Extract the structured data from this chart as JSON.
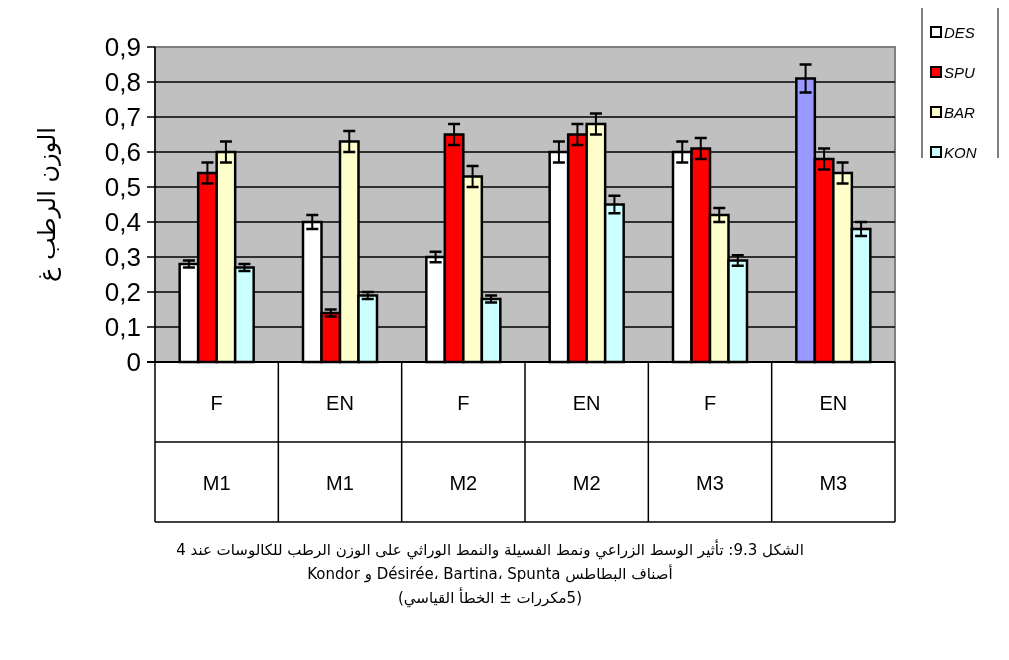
{
  "chart_data": {
    "type": "bar",
    "ylabel": "الوزن الرطب غ",
    "categories": [
      "F\nM1",
      "EN\nM1",
      "F\nM2",
      "EN\nM2",
      "F\nM3",
      "EN\nM3"
    ],
    "series": [
      {
        "name": "DES",
        "color": "#ffffff",
        "colors": [
          "#ffffff",
          "#ffffff",
          "#ffffff",
          "#ffffff",
          "#ffffff",
          "#9999ff"
        ],
        "values": [
          0.28,
          0.4,
          0.3,
          0.6,
          0.6,
          0.81
        ],
        "errors": [
          0.01,
          0.02,
          0.015,
          0.03,
          0.03,
          0.04
        ]
      },
      {
        "name": "SPU",
        "color": "#ff0000",
        "values": [
          0.54,
          0.14,
          0.65,
          0.65,
          0.61,
          0.58
        ],
        "errors": [
          0.03,
          0.01,
          0.03,
          0.03,
          0.03,
          0.03
        ]
      },
      {
        "name": "BAR",
        "color": "#ffffcc",
        "values": [
          0.6,
          0.63,
          0.53,
          0.68,
          0.42,
          0.54
        ],
        "errors": [
          0.03,
          0.03,
          0.03,
          0.03,
          0.02,
          0.03
        ]
      },
      {
        "name": "KON",
        "color": "#ccffff",
        "values": [
          0.27,
          0.19,
          0.18,
          0.45,
          0.29,
          0.38
        ],
        "errors": [
          0.01,
          0.01,
          0.01,
          0.025,
          0.015,
          0.02
        ]
      }
    ],
    "ylim": [
      0,
      0.9
    ],
    "yticks": [
      {
        "value": 0,
        "label": "0"
      },
      {
        "value": 0.1,
        "label": "0,1"
      },
      {
        "value": 0.2,
        "label": "0,2"
      },
      {
        "value": 0.3,
        "label": "0,3"
      },
      {
        "value": 0.4,
        "label": "0,4"
      },
      {
        "value": 0.5,
        "label": "0,5"
      },
      {
        "value": 0.6,
        "label": "0,6"
      },
      {
        "value": 0.7,
        "label": "0,7"
      },
      {
        "value": 0.8,
        "label": "0,8"
      },
      {
        "value": 0.9,
        "label": "0,9"
      }
    ],
    "grid": "y",
    "legend": "top right",
    "annotations": [
      "الشكل 9.3: تأثير الوسط الزراعي ونمط الفسيلة والنمط الوراثي على الوزن الرطب للكالوسات عند 4",
      "أصناف البطاطس Désirée، Bartina، Spunta و Kondor",
      "(5مكررات ± الخطأ القياسي)"
    ]
  }
}
